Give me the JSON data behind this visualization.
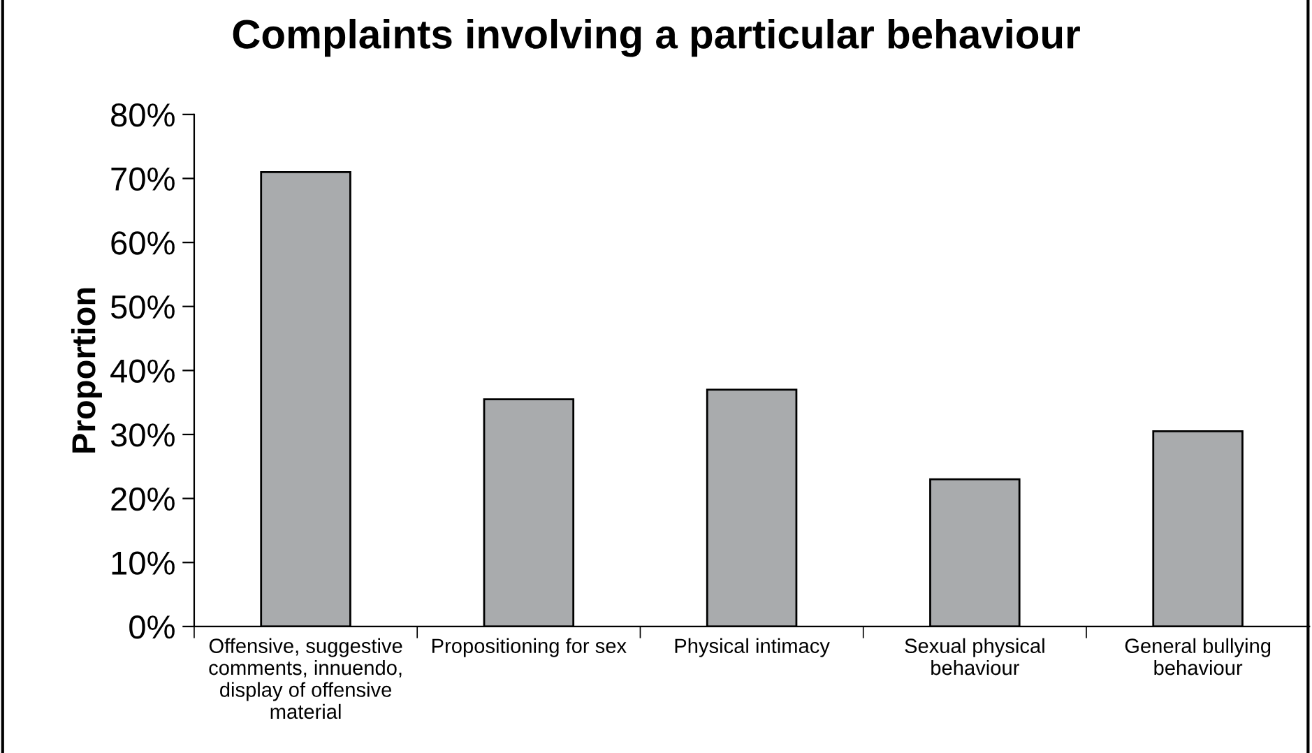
{
  "chart_data": {
    "type": "bar",
    "title": "Complaints involving a particular behaviour",
    "ylabel": "Proportion",
    "categories": [
      "Offensive, suggestive\ncomments, innuendo,\ndisplay of offensive\nmaterial",
      "Propositioning for sex",
      "Physical intimacy",
      "Sexual physical\nbehaviour",
      "General bullying\nbehaviour"
    ],
    "values": [
      71,
      35.5,
      37,
      23,
      30.5
    ],
    "color": "#a9abad",
    "ylim": [
      0,
      80
    ],
    "yticks": [
      {
        "value": 0,
        "label": "0%"
      },
      {
        "value": 10,
        "label": "10%"
      },
      {
        "value": 20,
        "label": "20%"
      },
      {
        "value": 30,
        "label": "30%"
      },
      {
        "value": 40,
        "label": "40%"
      },
      {
        "value": 50,
        "label": "50%"
      },
      {
        "value": 60,
        "label": "60%"
      },
      {
        "value": 70,
        "label": "70%"
      },
      {
        "value": 80,
        "label": "80%"
      }
    ],
    "grid": false,
    "legend": false
  }
}
